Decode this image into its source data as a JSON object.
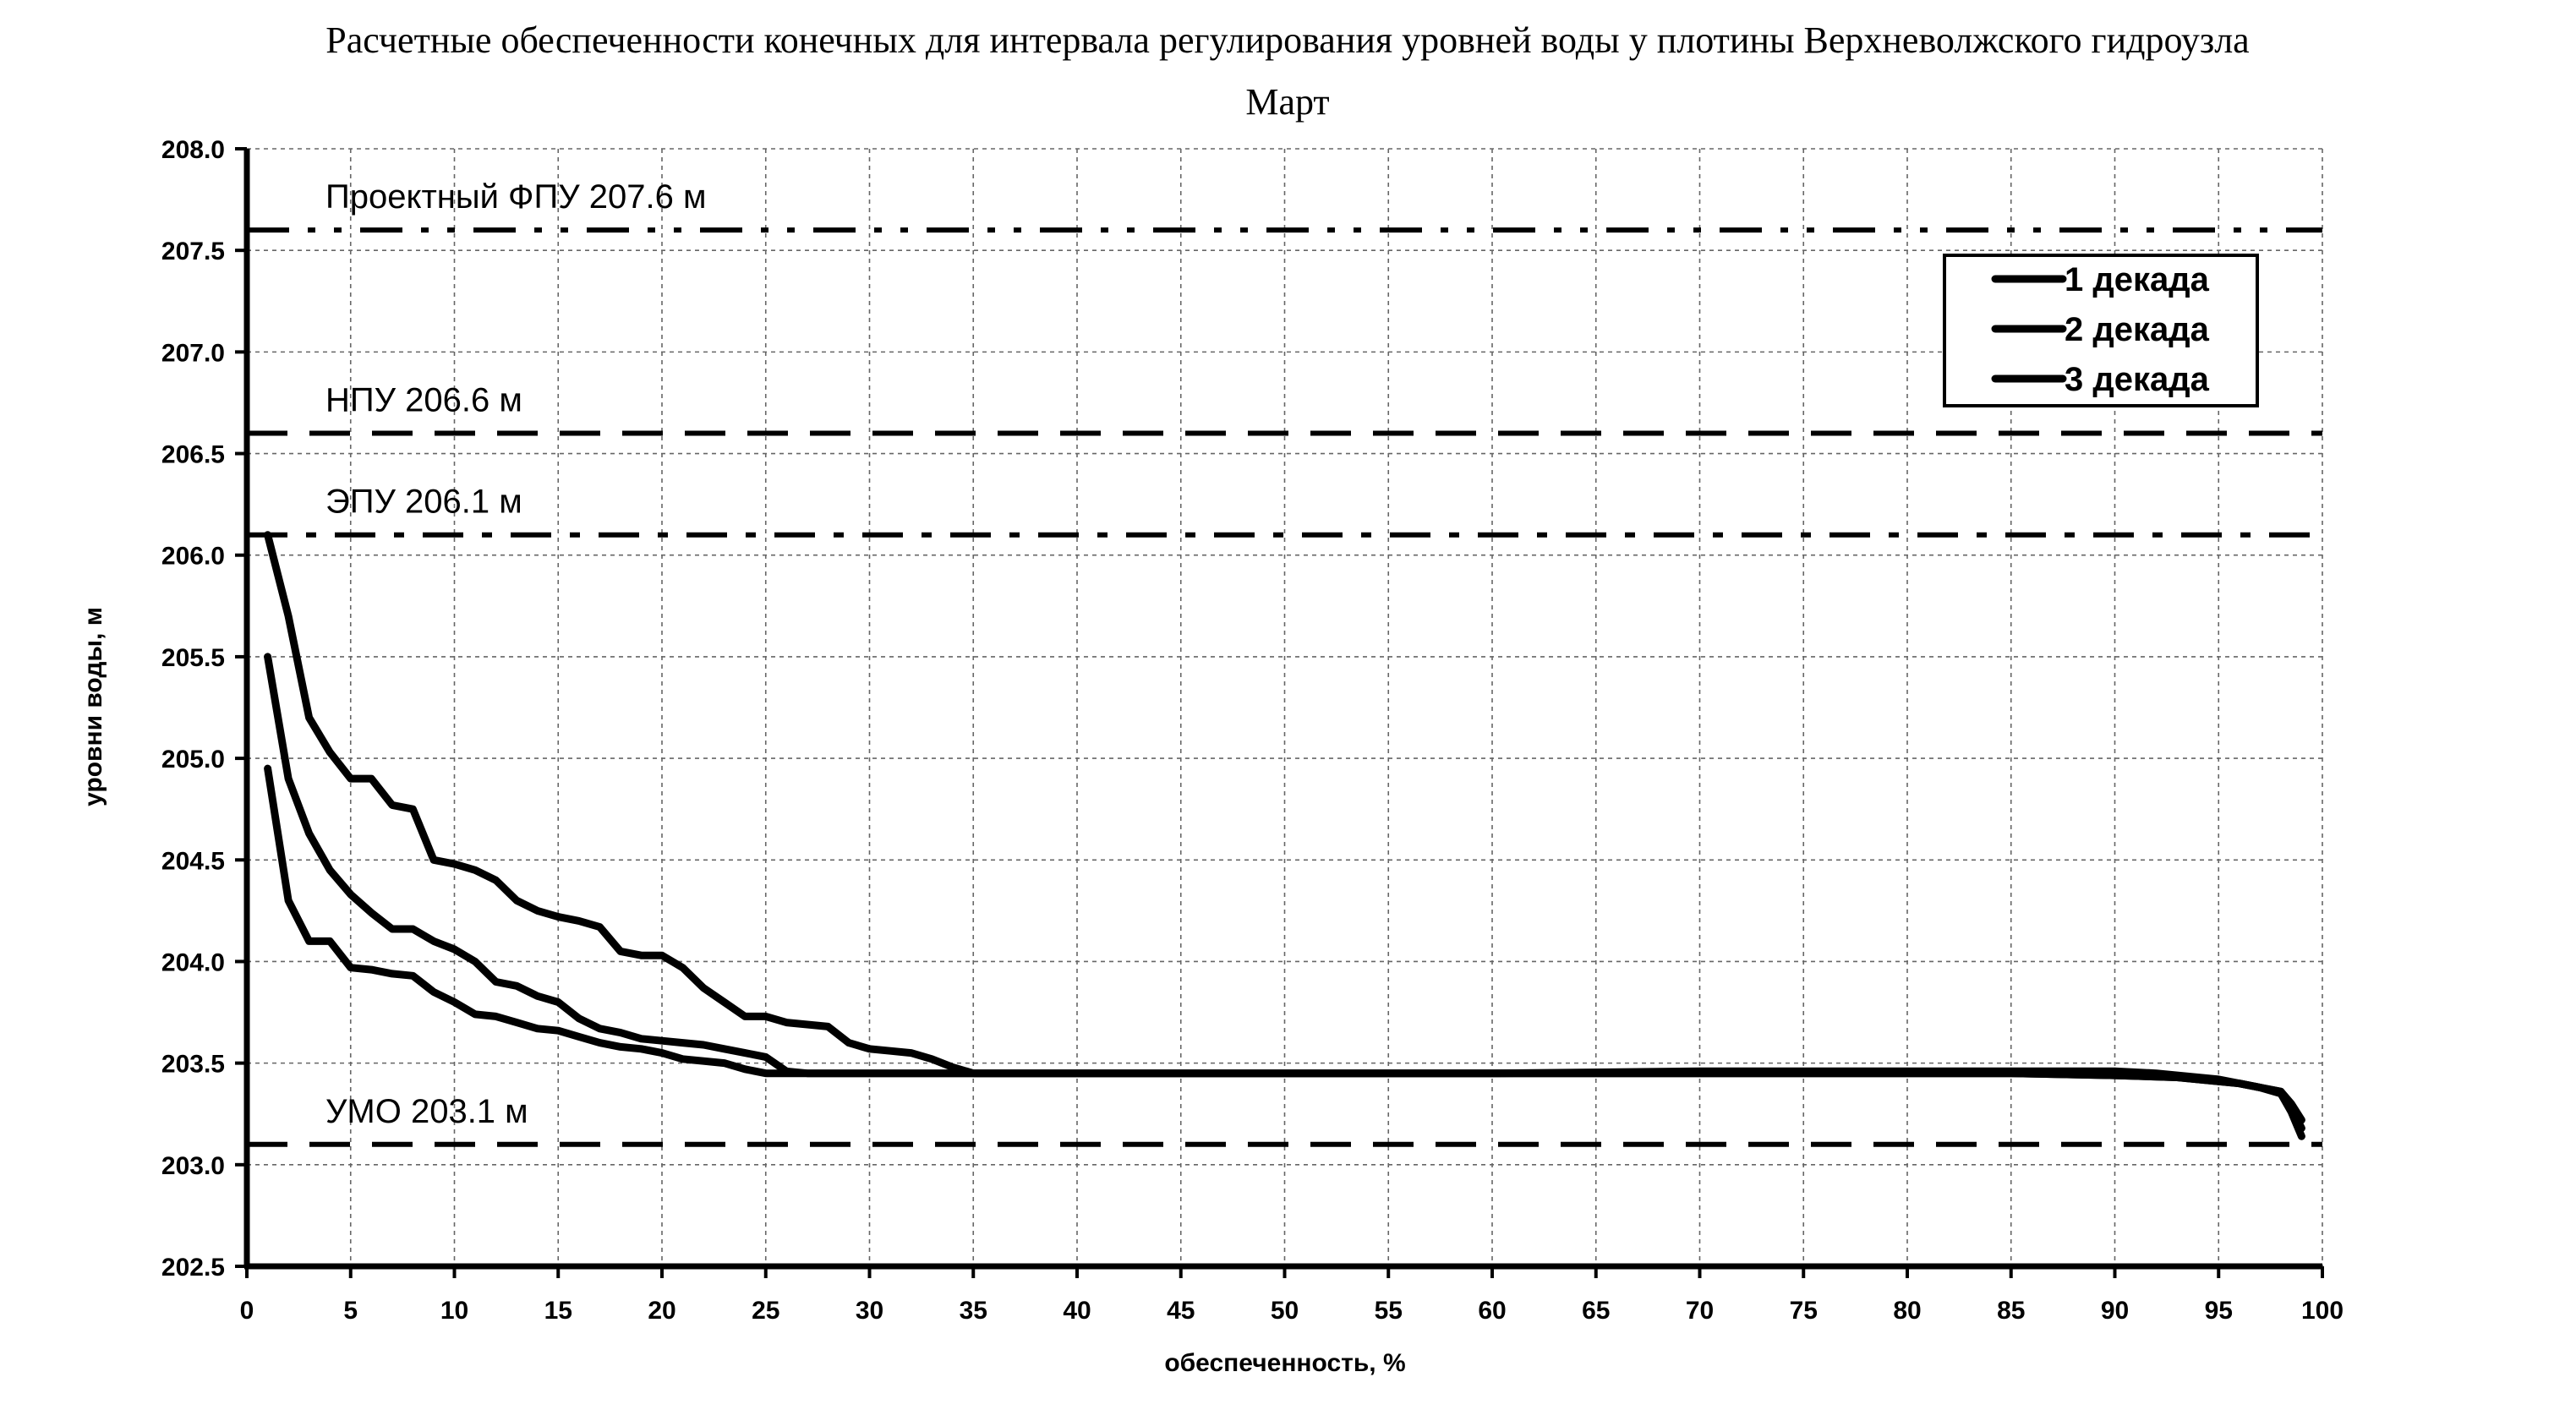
{
  "chart_data": {
    "type": "line",
    "title": "Расчетные обеспеченности конечных для интервала регулирования уровней воды у плотины Верхневолжского гидроузла",
    "subtitle": "Март",
    "xlabel": "обеспеченность, %",
    "ylabel": "уровни воды, м",
    "xlim": [
      0,
      100
    ],
    "ylim": [
      202.5,
      208.0
    ],
    "x_ticks": [
      "0",
      "5",
      "10",
      "15",
      "20",
      "25",
      "30",
      "35",
      "40",
      "45",
      "50",
      "55",
      "60",
      "65",
      "70",
      "75",
      "80",
      "85",
      "90",
      "95",
      "100"
    ],
    "y_ticks": [
      "202.5",
      "203.0",
      "203.5",
      "204.0",
      "204.5",
      "205.0",
      "205.5",
      "206.0",
      "206.5",
      "207.0",
      "207.5",
      "208.0"
    ],
    "grid": true,
    "legend_position": "top-right",
    "reference_lines": [
      {
        "label": "Проектный ФПУ 207.6 м",
        "value": 207.6,
        "style": "dash-dot-dot"
      },
      {
        "label": "НПУ 206.6 м",
        "value": 206.6,
        "style": "dash"
      },
      {
        "label": "ЭПУ 206.1 м",
        "value": 206.1,
        "style": "dash-dot"
      },
      {
        "label": "УМО 203.1 м",
        "value": 203.1,
        "style": "dash"
      }
    ],
    "series": [
      {
        "name": "1 декада",
        "points": [
          [
            1,
            204.95
          ],
          [
            2,
            204.3
          ],
          [
            3,
            204.1
          ],
          [
            4,
            204.1
          ],
          [
            5,
            203.97
          ],
          [
            6,
            203.96
          ],
          [
            7,
            203.94
          ],
          [
            8,
            203.93
          ],
          [
            9,
            203.85
          ],
          [
            10,
            203.8
          ],
          [
            11,
            203.74
          ],
          [
            12,
            203.73
          ],
          [
            13,
            203.7
          ],
          [
            14,
            203.67
          ],
          [
            15,
            203.66
          ],
          [
            16,
            203.63
          ],
          [
            17,
            203.6
          ],
          [
            18,
            203.58
          ],
          [
            19,
            203.57
          ],
          [
            20,
            203.55
          ],
          [
            21,
            203.52
          ],
          [
            22,
            203.51
          ],
          [
            23,
            203.5
          ],
          [
            24,
            203.47
          ],
          [
            25,
            203.45
          ],
          [
            30,
            203.45
          ],
          [
            40,
            203.45
          ],
          [
            50,
            203.45
          ],
          [
            60,
            203.45
          ],
          [
            70,
            203.45
          ],
          [
            80,
            203.45
          ],
          [
            85,
            203.45
          ],
          [
            90,
            203.44
          ],
          [
            93,
            203.43
          ],
          [
            95,
            203.41
          ],
          [
            96,
            203.4
          ],
          [
            97,
            203.38
          ],
          [
            98,
            203.36
          ],
          [
            98.5,
            203.28
          ],
          [
            99,
            203.18
          ]
        ]
      },
      {
        "name": "2 декада",
        "points": [
          [
            1,
            205.5
          ],
          [
            2,
            204.9
          ],
          [
            3,
            204.63
          ],
          [
            4,
            204.45
          ],
          [
            5,
            204.33
          ],
          [
            6,
            204.24
          ],
          [
            7,
            204.16
          ],
          [
            8,
            204.16
          ],
          [
            9,
            204.1
          ],
          [
            10,
            204.06
          ],
          [
            11,
            204.0
          ],
          [
            12,
            203.9
          ],
          [
            13,
            203.88
          ],
          [
            14,
            203.83
          ],
          [
            15,
            203.8
          ],
          [
            16,
            203.72
          ],
          [
            17,
            203.67
          ],
          [
            18,
            203.65
          ],
          [
            19,
            203.62
          ],
          [
            20,
            203.61
          ],
          [
            21,
            203.6
          ],
          [
            22,
            203.59
          ],
          [
            23,
            203.57
          ],
          [
            24,
            203.55
          ],
          [
            25,
            203.53
          ],
          [
            26,
            203.46
          ],
          [
            27,
            203.45
          ],
          [
            30,
            203.45
          ],
          [
            40,
            203.45
          ],
          [
            50,
            203.45
          ],
          [
            60,
            203.45
          ],
          [
            70,
            203.45
          ],
          [
            80,
            203.45
          ],
          [
            85,
            203.45
          ],
          [
            90,
            203.44
          ],
          [
            93,
            203.43
          ],
          [
            95,
            203.41
          ],
          [
            96,
            203.4
          ],
          [
            97,
            203.38
          ],
          [
            98,
            203.35
          ],
          [
            98.5,
            203.26
          ],
          [
            99,
            203.14
          ]
        ]
      },
      {
        "name": "3 декада",
        "points": [
          [
            1,
            206.1
          ],
          [
            2,
            205.7
          ],
          [
            3,
            205.2
          ],
          [
            4,
            205.03
          ],
          [
            5,
            204.9
          ],
          [
            6,
            204.9
          ],
          [
            7,
            204.77
          ],
          [
            8,
            204.75
          ],
          [
            9,
            204.5
          ],
          [
            10,
            204.48
          ],
          [
            11,
            204.45
          ],
          [
            12,
            204.4
          ],
          [
            13,
            204.3
          ],
          [
            14,
            204.25
          ],
          [
            15,
            204.22
          ],
          [
            16,
            204.2
          ],
          [
            17,
            204.17
          ],
          [
            18,
            204.05
          ],
          [
            19,
            204.03
          ],
          [
            20,
            204.03
          ],
          [
            21,
            203.97
          ],
          [
            22,
            203.87
          ],
          [
            23,
            203.8
          ],
          [
            24,
            203.73
          ],
          [
            25,
            203.73
          ],
          [
            26,
            203.7
          ],
          [
            27,
            203.69
          ],
          [
            28,
            203.68
          ],
          [
            29,
            203.6
          ],
          [
            30,
            203.57
          ],
          [
            31,
            203.56
          ],
          [
            32,
            203.55
          ],
          [
            33,
            203.52
          ],
          [
            34,
            203.48
          ],
          [
            35,
            203.45
          ],
          [
            40,
            203.45
          ],
          [
            50,
            203.45
          ],
          [
            60,
            203.45
          ],
          [
            70,
            203.46
          ],
          [
            80,
            203.46
          ],
          [
            85,
            203.46
          ],
          [
            90,
            203.46
          ],
          [
            92,
            203.45
          ],
          [
            94,
            203.43
          ],
          [
            95,
            203.42
          ],
          [
            96,
            203.4
          ],
          [
            97,
            203.38
          ],
          [
            98,
            203.36
          ],
          [
            98.5,
            203.3
          ],
          [
            99,
            203.22
          ]
        ]
      }
    ]
  }
}
